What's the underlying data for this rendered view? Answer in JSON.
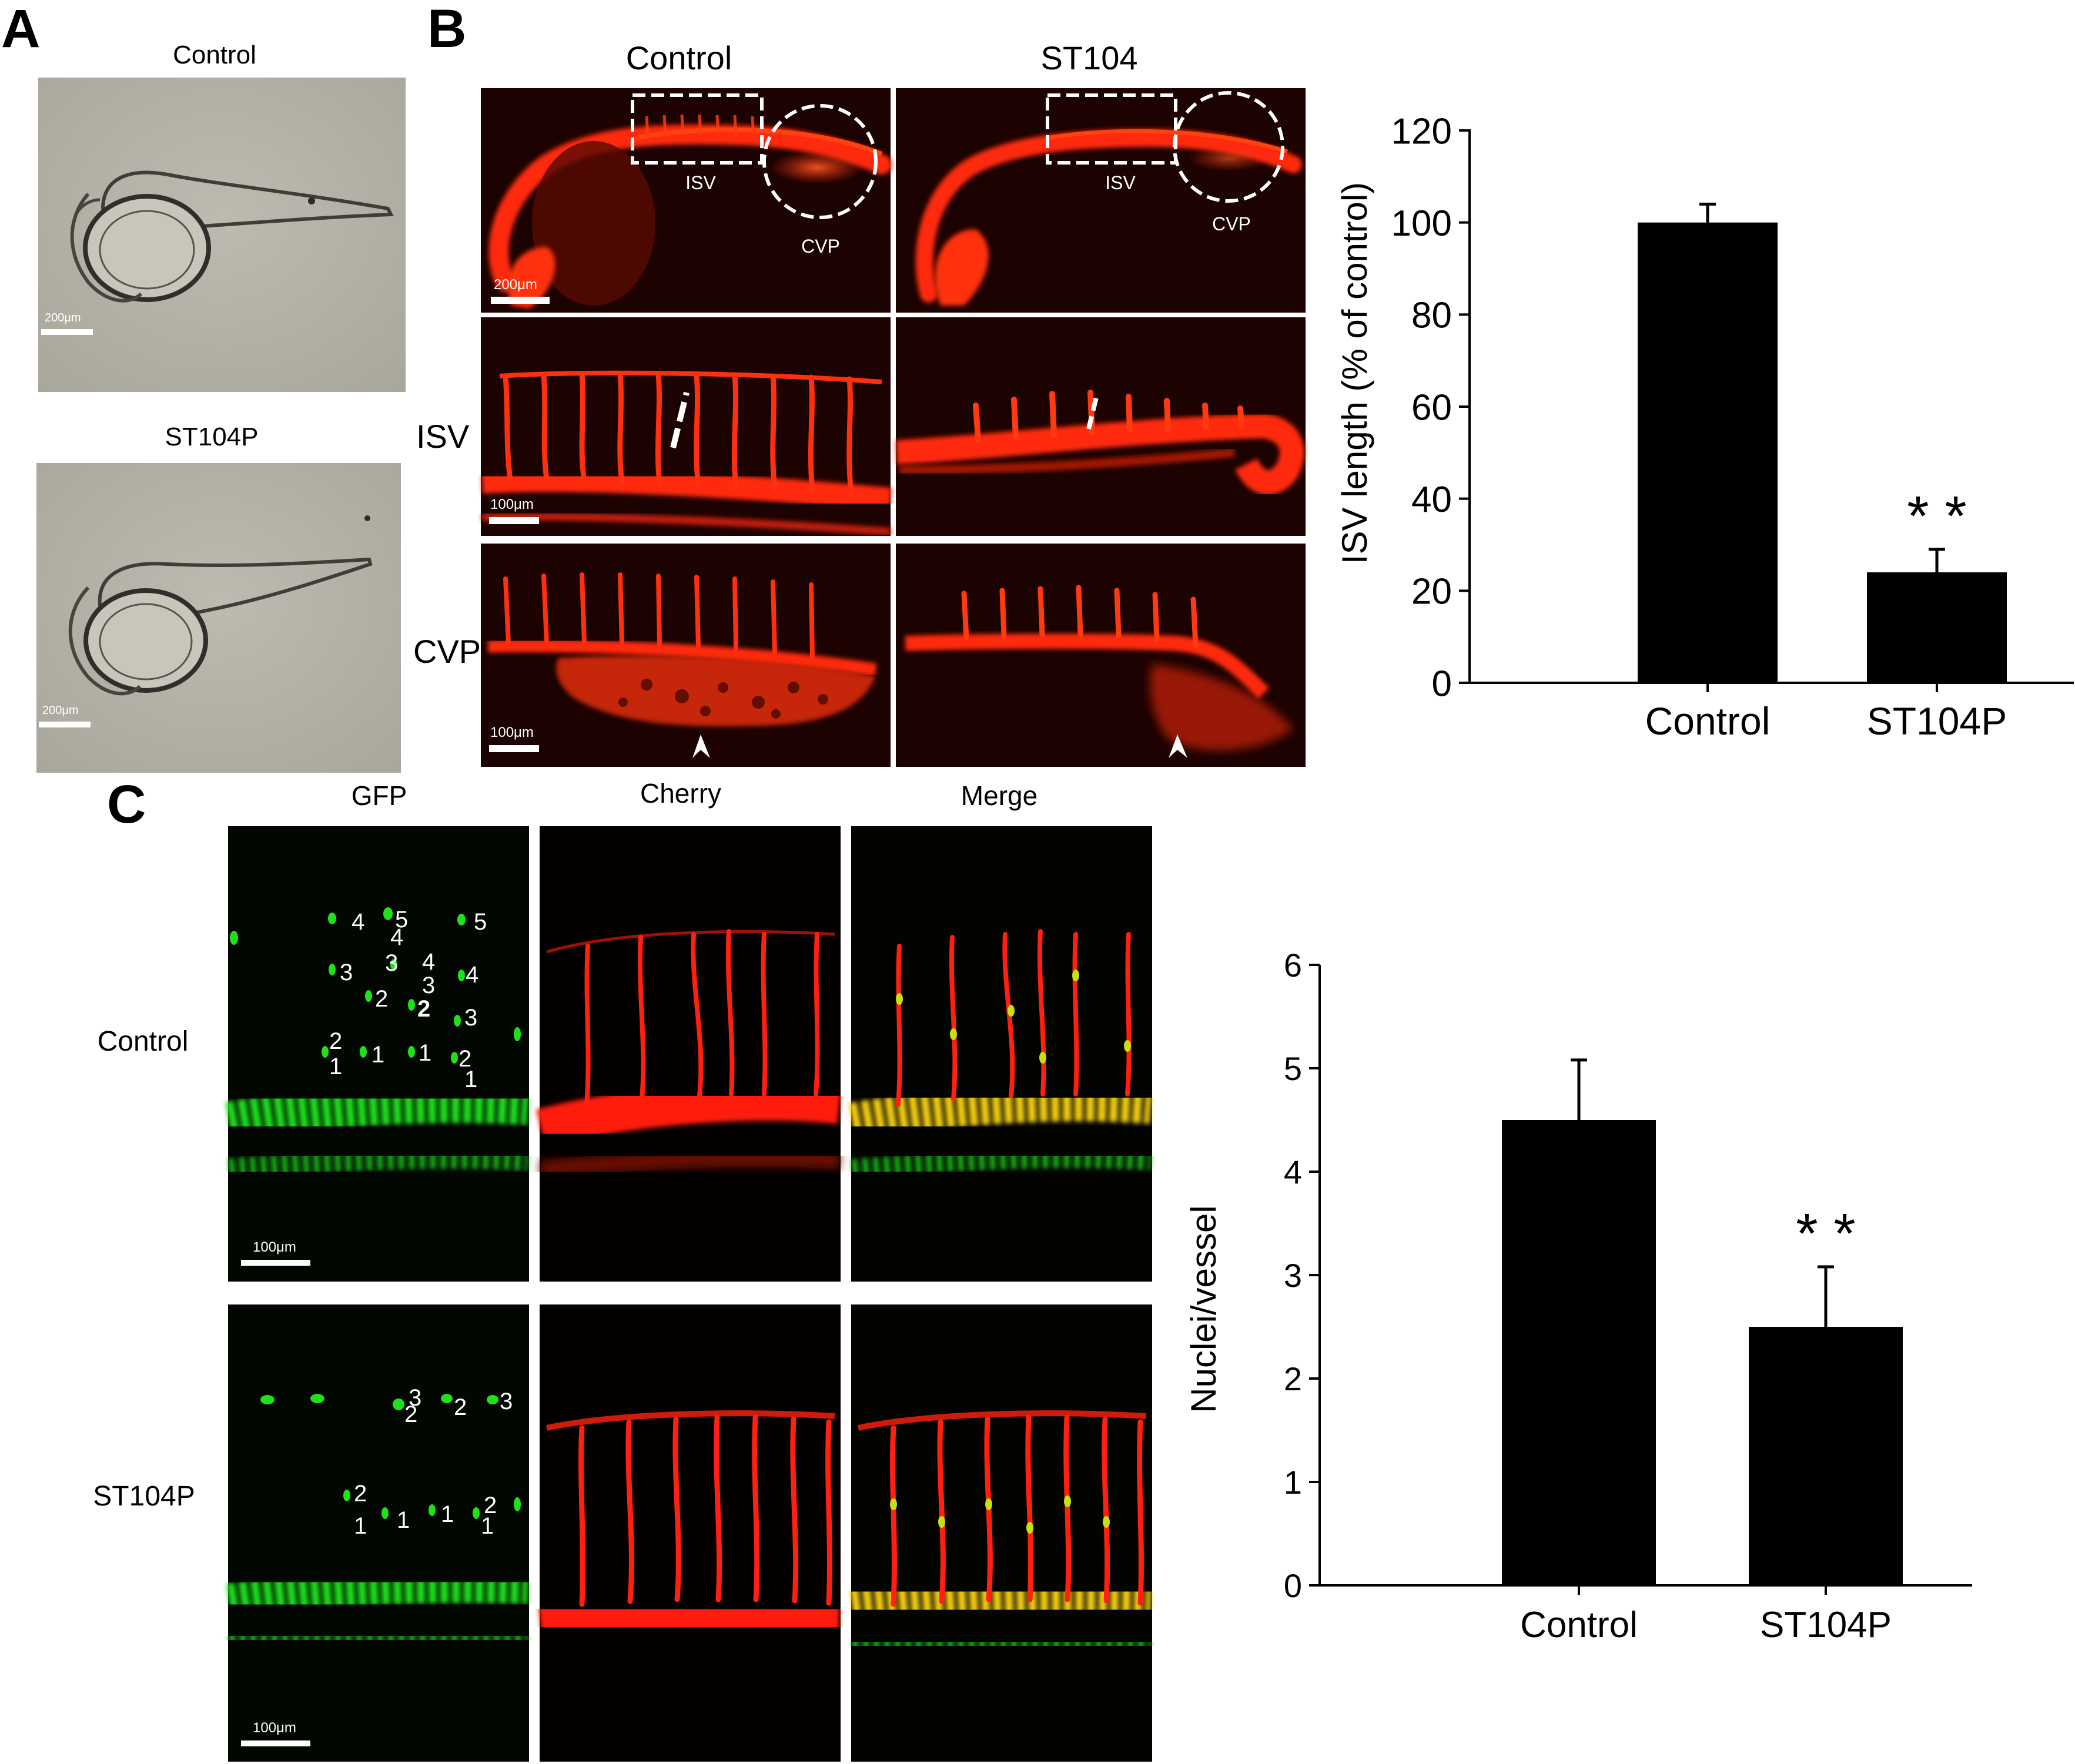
{
  "panels": {
    "A": {
      "letter": "A",
      "labels": [
        "Control",
        "ST104P"
      ],
      "scale_bar": "200μm"
    },
    "B": {
      "letter": "B",
      "columns": [
        "Control",
        "ST104"
      ],
      "rows": [
        "ISV",
        "CVP"
      ],
      "region_labels": {
        "isv": "ISV",
        "cvp": "CVP"
      },
      "scale_bars": [
        "200μm",
        "100μm",
        "100μm"
      ]
    },
    "C": {
      "letter": "C",
      "columns": [
        "GFP",
        "Cherry",
        "Merge"
      ],
      "rows": [
        "Control",
        "ST104P"
      ],
      "scale_bar": "100μm",
      "nuclei_numbers_control": [
        "4",
        "5",
        "4",
        "5",
        "3",
        "3",
        "4",
        "3",
        "4",
        "2",
        "2",
        "3",
        "2",
        "1",
        "1",
        "1",
        "2",
        "1",
        "1"
      ],
      "nuclei_numbers_st104p": [
        "3",
        "2",
        "2",
        "3",
        "2",
        "1",
        "1",
        "1",
        "2",
        "1"
      ]
    }
  },
  "colors": {
    "fluorescence_red": "#ff2a10",
    "gfp_green": "#1fe01a",
    "brightfield": "#b5b2a8",
    "bar": "#000000"
  },
  "chart_data": [
    {
      "type": "bar",
      "panel": "B",
      "categories": [
        "Control",
        "ST104P"
      ],
      "values": [
        100,
        24
      ],
      "error": [
        4,
        5
      ],
      "ylabel": "ISV length (% of control)",
      "ylim": [
        0,
        120
      ],
      "yticks": [
        "0",
        "20",
        "40",
        "60",
        "80",
        "100",
        "120"
      ],
      "annotations": [
        {
          "category": "ST104P",
          "text": "* *"
        }
      ]
    },
    {
      "type": "bar",
      "panel": "C",
      "categories": [
        "Control",
        "ST104P"
      ],
      "values": [
        4.5,
        2.5
      ],
      "error": [
        0.58,
        0.58
      ],
      "ylabel": "Nuclei/vessel",
      "ylim": [
        0,
        6
      ],
      "yticks": [
        "0",
        "1",
        "2",
        "3",
        "4",
        "5",
        "6"
      ],
      "annotations": [
        {
          "category": "ST104P",
          "text": "* *"
        }
      ]
    }
  ]
}
